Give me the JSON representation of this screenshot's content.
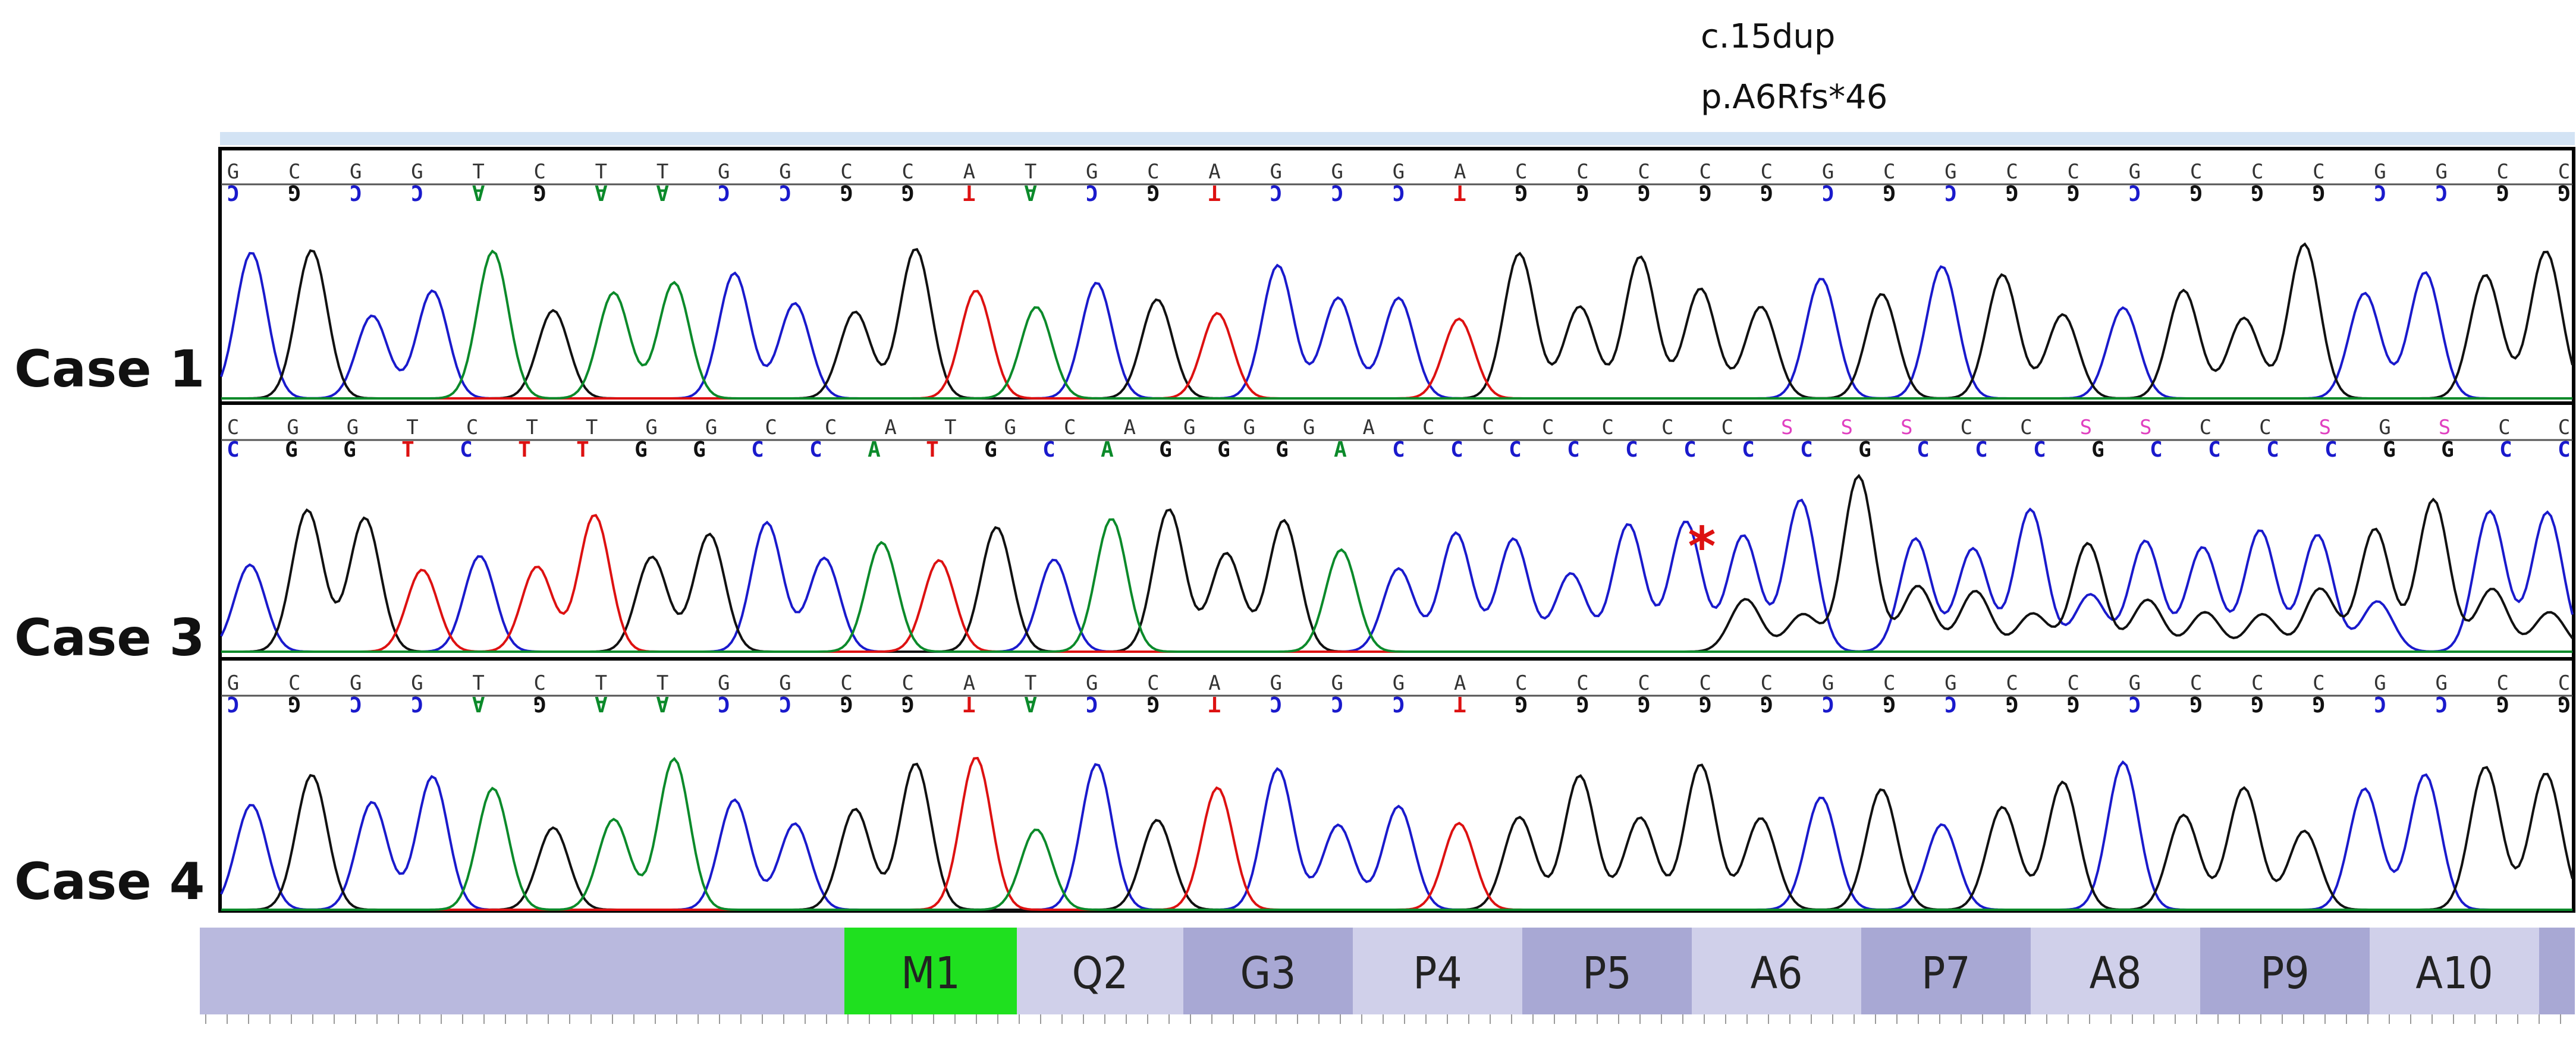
{
  "annotation": {
    "line1": "c.15dup",
    "line2": "p.A6Rfs*46"
  },
  "colors": {
    "A": "#0b8a2a",
    "C": "#1a1acc",
    "G": "#111111",
    "T": "#dd1111",
    "S": "#e040c0",
    "marker": "#dd1111"
  },
  "panels": [
    {
      "label": "Case 1",
      "seq": [
        "G",
        "C",
        "G",
        "G",
        "T",
        "C",
        "T",
        "T",
        "G",
        "G",
        "C",
        "C",
        "A",
        "T",
        "G",
        "C",
        "A",
        "G",
        "G",
        "G",
        "A",
        "C",
        "C",
        "C",
        "C",
        "C",
        "G",
        "C",
        "G",
        "C",
        "C",
        "G",
        "C",
        "C",
        "C",
        "G",
        "G",
        "C",
        "C"
      ],
      "comp": [
        "C",
        "G",
        "C",
        "C",
        "A",
        "G",
        "A",
        "A",
        "C",
        "C",
        "G",
        "G",
        "T",
        "A",
        "C",
        "G",
        "T",
        "C",
        "C",
        "C",
        "T",
        "G",
        "G",
        "G",
        "G",
        "G",
        "C",
        "G",
        "C",
        "G",
        "G",
        "C",
        "G",
        "G",
        "G",
        "C",
        "C",
        "G",
        "G"
      ],
      "flipped": true
    },
    {
      "label": "Case 3",
      "seq": [
        "C",
        "G",
        "G",
        "T",
        "C",
        "T",
        "T",
        "G",
        "G",
        "C",
        "C",
        "A",
        "T",
        "G",
        "C",
        "A",
        "G",
        "G",
        "G",
        "A",
        "C",
        "C",
        "C",
        "C",
        "C",
        "C",
        "S",
        "S",
        "S",
        "C",
        "C",
        "S",
        "S",
        "C",
        "C",
        "S",
        "G",
        "S",
        "C",
        "C"
      ],
      "comp": [
        "C",
        "G",
        "G",
        "T",
        "C",
        "T",
        "T",
        "G",
        "G",
        "C",
        "C",
        "A",
        "T",
        "G",
        "C",
        "A",
        "G",
        "G",
        "G",
        "A",
        "C",
        "C",
        "C",
        "C",
        "C",
        "C",
        "C",
        "C",
        "G",
        "C",
        "C",
        "C",
        "G",
        "C",
        "C",
        "C",
        "C",
        "G",
        "G",
        "C",
        "C"
      ],
      "flipped": false,
      "marker": "*"
    },
    {
      "label": "Case 4",
      "seq": [
        "G",
        "C",
        "G",
        "G",
        "T",
        "C",
        "T",
        "T",
        "G",
        "G",
        "C",
        "C",
        "A",
        "T",
        "G",
        "C",
        "A",
        "G",
        "G",
        "G",
        "A",
        "C",
        "C",
        "C",
        "C",
        "C",
        "G",
        "C",
        "G",
        "C",
        "C",
        "G",
        "C",
        "C",
        "C",
        "G",
        "G",
        "C",
        "C"
      ],
      "comp": [
        "C",
        "G",
        "C",
        "C",
        "A",
        "G",
        "A",
        "A",
        "C",
        "C",
        "G",
        "G",
        "T",
        "A",
        "C",
        "G",
        "T",
        "C",
        "C",
        "C",
        "T",
        "G",
        "G",
        "G",
        "G",
        "G",
        "C",
        "G",
        "C",
        "G",
        "G",
        "C",
        "G",
        "G",
        "G",
        "C",
        "C",
        "G",
        "G"
      ],
      "flipped": true
    }
  ],
  "amino_acids": [
    "M1",
    "Q2",
    "G3",
    "P4",
    "P5",
    "A6",
    "P7",
    "A8",
    "P9",
    "A10"
  ]
}
